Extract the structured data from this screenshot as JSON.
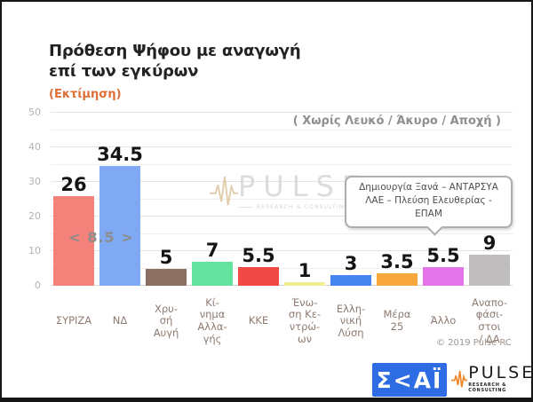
{
  "header": {
    "title": "Πρόθεση Ψήφου με αναγωγή\nεπί των εγκύρων",
    "subtitle": "(Εκτίμηση)",
    "note": "( Χωρίς Λευκό / Άκυρο / Αποχή )"
  },
  "chart_data": {
    "type": "bar",
    "title": "Πρόθεση Ψήφου με αναγωγή επί των εγκύρων",
    "subtitle": "(Εκτίμηση)",
    "note": "( Χωρίς Λευκό / Άκυρο / Αποχή )",
    "ylim": [
      0,
      50
    ],
    "ytick_labels": [
      0,
      10,
      20,
      30,
      40,
      50
    ],
    "gridline_step": 5,
    "grid": "on",
    "categories": [
      "ΣΥΡΙΖΑ",
      "ΝΔ",
      "Χρυσή Αυγή",
      "Κίνημα Αλλαγής",
      "ΚΚΕ",
      "Ένωση Κεντρώων",
      "Ελληνική Λύση",
      "Μέρα 25",
      "Άλλο",
      "Αναποφάσιστοι / ΔΑ"
    ],
    "category_label_lines": [
      "ΣΥΡΙΖΑ",
      "ΝΔ",
      "Χρυ-\nσή\nΑυγή",
      "Κί-\nνημα\nΑλλα-\nγής",
      "ΚΚΕ",
      "Ένω-\nση Κε-\nντρώ-\nων",
      "Ελλη-\nνική\nΛύση",
      "Μέρα\n25",
      "Άλλο",
      "Αναπο-\nφάσι-\nστοι\n/ ΔΑ"
    ],
    "values": [
      26,
      34.5,
      5,
      7,
      5.5,
      1,
      3,
      3.5,
      5.5,
      9
    ],
    "bar_colors": [
      "#f5827a",
      "#80a9f4",
      "#8b6f63",
      "#63e2a0",
      "#ef4a46",
      "#f1ee95",
      "#4684f0",
      "#f7a73b",
      "#e475e8",
      "#bfbdbd"
    ],
    "gap_annotation": "< 8.5 >",
    "callout_line1": "Δημιουργία Ξανά – ΑΝΤΑΡΣΥΑ",
    "callout_line2": "ΛΑΕ – Πλεύση Ελευθερίας - ΕΠΑΜ",
    "copyright": "© 2019 Pulse RC"
  },
  "watermark": {
    "name": "PULSE",
    "tagline": "RESEARCH & CONSULTING"
  },
  "footer": {
    "skai_text": "Σ<ΑΪ",
    "pulse_name": "PULSE",
    "pulse_tagline": "RESEARCH & CONSULTING"
  }
}
